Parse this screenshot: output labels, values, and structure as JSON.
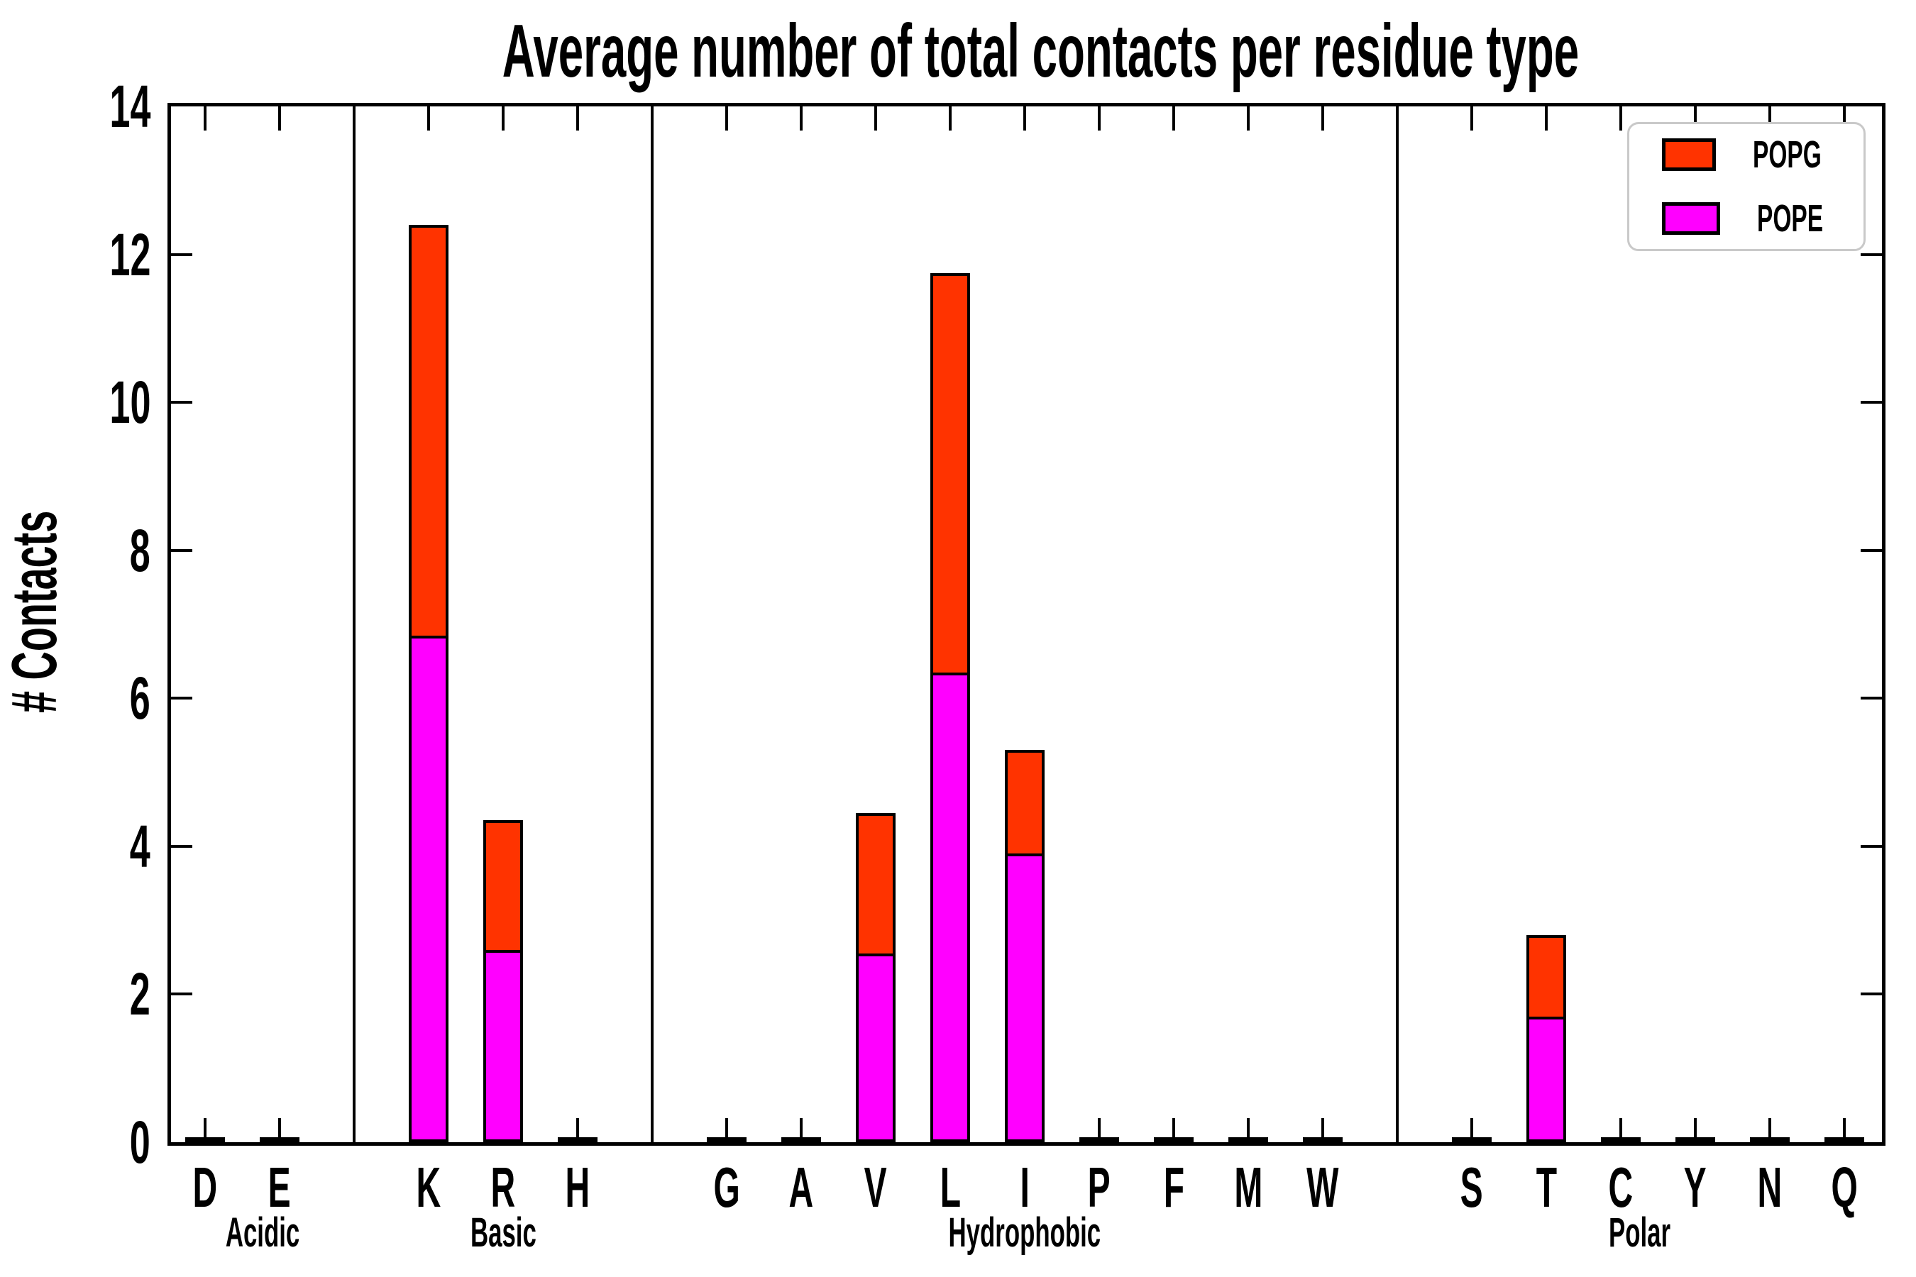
{
  "title": "Average number of total contacts per residue type",
  "y_axis": {
    "label": "# Contacts",
    "tick_labels": [
      "0",
      "2",
      "4",
      "6",
      "8",
      "10",
      "12",
      "14"
    ]
  },
  "legend": [
    {
      "label": "POPG",
      "color": "#ff3300"
    },
    {
      "label": "POPE",
      "color": "#ff00ff"
    }
  ],
  "colors": {
    "popg": "#ff3300",
    "pope": "#ff00ff",
    "edge": "#000000",
    "legend_border": "#c9c9c9"
  },
  "chart_data": {
    "type": "bar",
    "stacked": true,
    "title": "Average number of total contacts per residue type",
    "xlabel": "",
    "ylabel": "# Contacts",
    "ylim": [
      0,
      14
    ],
    "yticks": [
      0,
      2,
      4,
      6,
      8,
      10,
      12,
      14
    ],
    "grid": false,
    "legend_position": "upper right",
    "categories": [
      "D",
      "E",
      "K",
      "R",
      "H",
      "G",
      "A",
      "V",
      "L",
      "I",
      "P",
      "F",
      "M",
      "W",
      "S",
      "T",
      "C",
      "Y",
      "N",
      "Q"
    ],
    "groups": [
      {
        "label": "Acidic",
        "categories": [
          "D",
          "E"
        ]
      },
      {
        "label": "Basic",
        "categories": [
          "K",
          "R",
          "H"
        ]
      },
      {
        "label": "Hydrophobic",
        "categories": [
          "G",
          "A",
          "V",
          "L",
          "I",
          "P",
          "F",
          "M",
          "W"
        ]
      },
      {
        "label": "Polar",
        "categories": [
          "S",
          "T",
          "C",
          "Y",
          "N",
          "Q"
        ]
      }
    ],
    "series": [
      {
        "name": "POPE",
        "color": "#ff00ff",
        "values": [
          0.03,
          0.03,
          6.85,
          2.6,
          0.03,
          0.03,
          0.03,
          2.55,
          6.35,
          3.9,
          0.03,
          0.03,
          0.03,
          0.03,
          0.03,
          1.7,
          0.03,
          0.03,
          0.03,
          0.03
        ]
      },
      {
        "name": "POPG",
        "color": "#ff3300",
        "values": [
          0.0,
          0.0,
          5.55,
          1.75,
          0.0,
          0.0,
          0.0,
          1.9,
          5.4,
          1.4,
          0.0,
          0.0,
          0.0,
          0.0,
          0.0,
          1.1,
          0.0,
          0.0,
          0.0,
          0.0
        ]
      }
    ],
    "totals_note": "stacked totals: K 12.40, R 4.35, V 4.45, L 11.75, I 5.30, T 2.80; all other residues ~0"
  }
}
